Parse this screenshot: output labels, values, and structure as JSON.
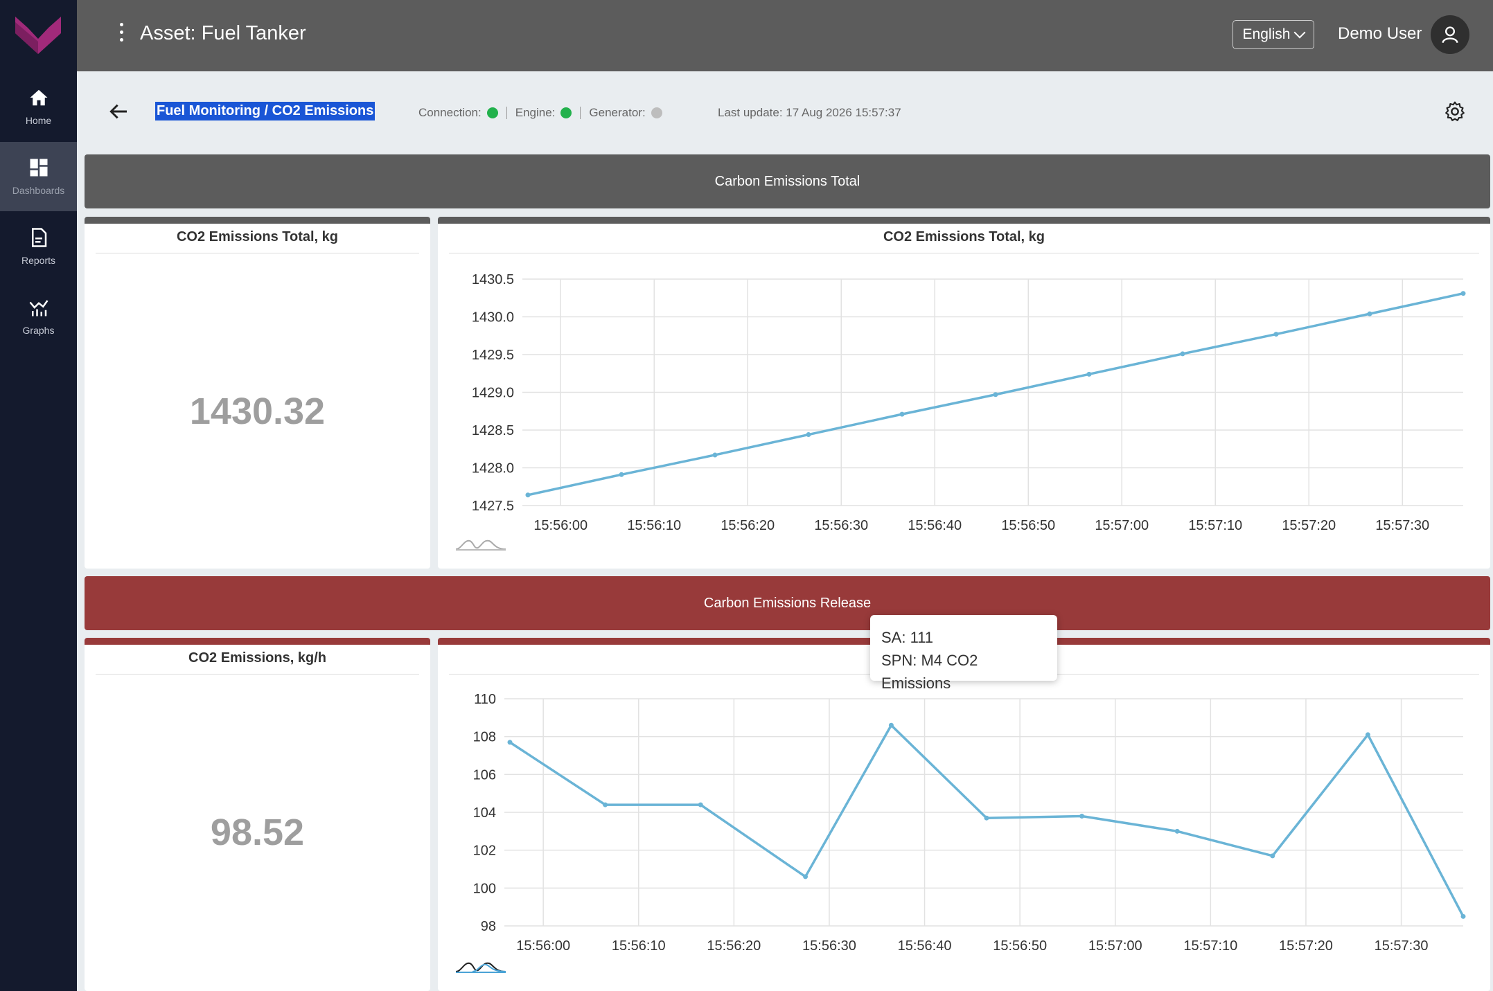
{
  "sidebar": {
    "items": [
      {
        "label": "Home",
        "icon": "home-icon"
      },
      {
        "label": "Dashboards",
        "icon": "dashboard-icon"
      },
      {
        "label": "Reports",
        "icon": "report-icon"
      },
      {
        "label": "Graphs",
        "icon": "graph-icon"
      }
    ],
    "accent": "#a12a7a"
  },
  "topbar": {
    "title": "Asset: Fuel Tanker",
    "language": "English",
    "user": "Demo User"
  },
  "header": {
    "breadcrumb": "Fuel Monitoring / CO2 Emissions",
    "connection_label": "Connection:",
    "engine_label": "Engine:",
    "generator_label": "Generator:",
    "connection_status_color": "#22b14c",
    "engine_status_color": "#22b14c",
    "generator_status_color": "#bdbdbd",
    "last_update": "Last update: 17 Aug 2026 15:57:37"
  },
  "sections": {
    "total": "Carbon Emissions Total",
    "release": "Carbon Emissions Release"
  },
  "cards": {
    "total_value_title": "CO2 Emissions Total, kg",
    "total_value": "1430.32",
    "total_chart_title": "CO2 Emissions Total, kg",
    "rate_value_title": "CO2 Emissions, kg/h",
    "rate_value": "98.52"
  },
  "tooltip": {
    "line1": "SA: 111",
    "line2": "SPN: M4 CO2 Emissions"
  },
  "chart_data": [
    {
      "type": "line",
      "title": "CO2 Emissions Total, kg",
      "x_ticks": [
        "15:56:00",
        "15:56:10",
        "15:56:20",
        "15:56:30",
        "15:56:40",
        "15:56:50",
        "15:57:00",
        "15:57:10",
        "15:57:20",
        "15:57:30"
      ],
      "y_ticks": [
        "1427.5",
        "1428.0",
        "1428.5",
        "1429.0",
        "1429.5",
        "1430.0",
        "1430.5"
      ],
      "ylim": [
        1427.5,
        1430.5
      ],
      "xlim_seconds": [
        -3.5,
        96.5
      ],
      "series": [
        {
          "color": "#6ab4d6",
          "x_seconds": [
            -3.5,
            6.5,
            16.5,
            26.5,
            36.5,
            46.5,
            56.5,
            66.5,
            76.5,
            86.5,
            96.5
          ],
          "values": [
            1427.64,
            1427.91,
            1428.17,
            1428.44,
            1428.71,
            1428.97,
            1429.24,
            1429.51,
            1429.77,
            1430.04,
            1430.31
          ]
        }
      ]
    },
    {
      "type": "line",
      "title": "",
      "x_ticks": [
        "15:56:00",
        "15:56:10",
        "15:56:20",
        "15:56:30",
        "15:56:40",
        "15:56:50",
        "15:57:00",
        "15:57:10",
        "15:57:20",
        "15:57:30"
      ],
      "y_ticks": [
        "98",
        "100",
        "102",
        "104",
        "106",
        "108",
        "110"
      ],
      "ylim": [
        98,
        110
      ],
      "xlim_seconds": [
        -3.5,
        96.5
      ],
      "series": [
        {
          "color": "#6ab4d6",
          "x_seconds": [
            -3.5,
            6.5,
            16.5,
            27.5,
            36.5,
            46.5,
            56.5,
            66.5,
            76.5,
            86.5,
            96.5
          ],
          "values": [
            107.7,
            104.4,
            104.4,
            100.6,
            108.6,
            103.7,
            103.8,
            103.0,
            101.7,
            108.1,
            98.5
          ]
        }
      ]
    }
  ]
}
